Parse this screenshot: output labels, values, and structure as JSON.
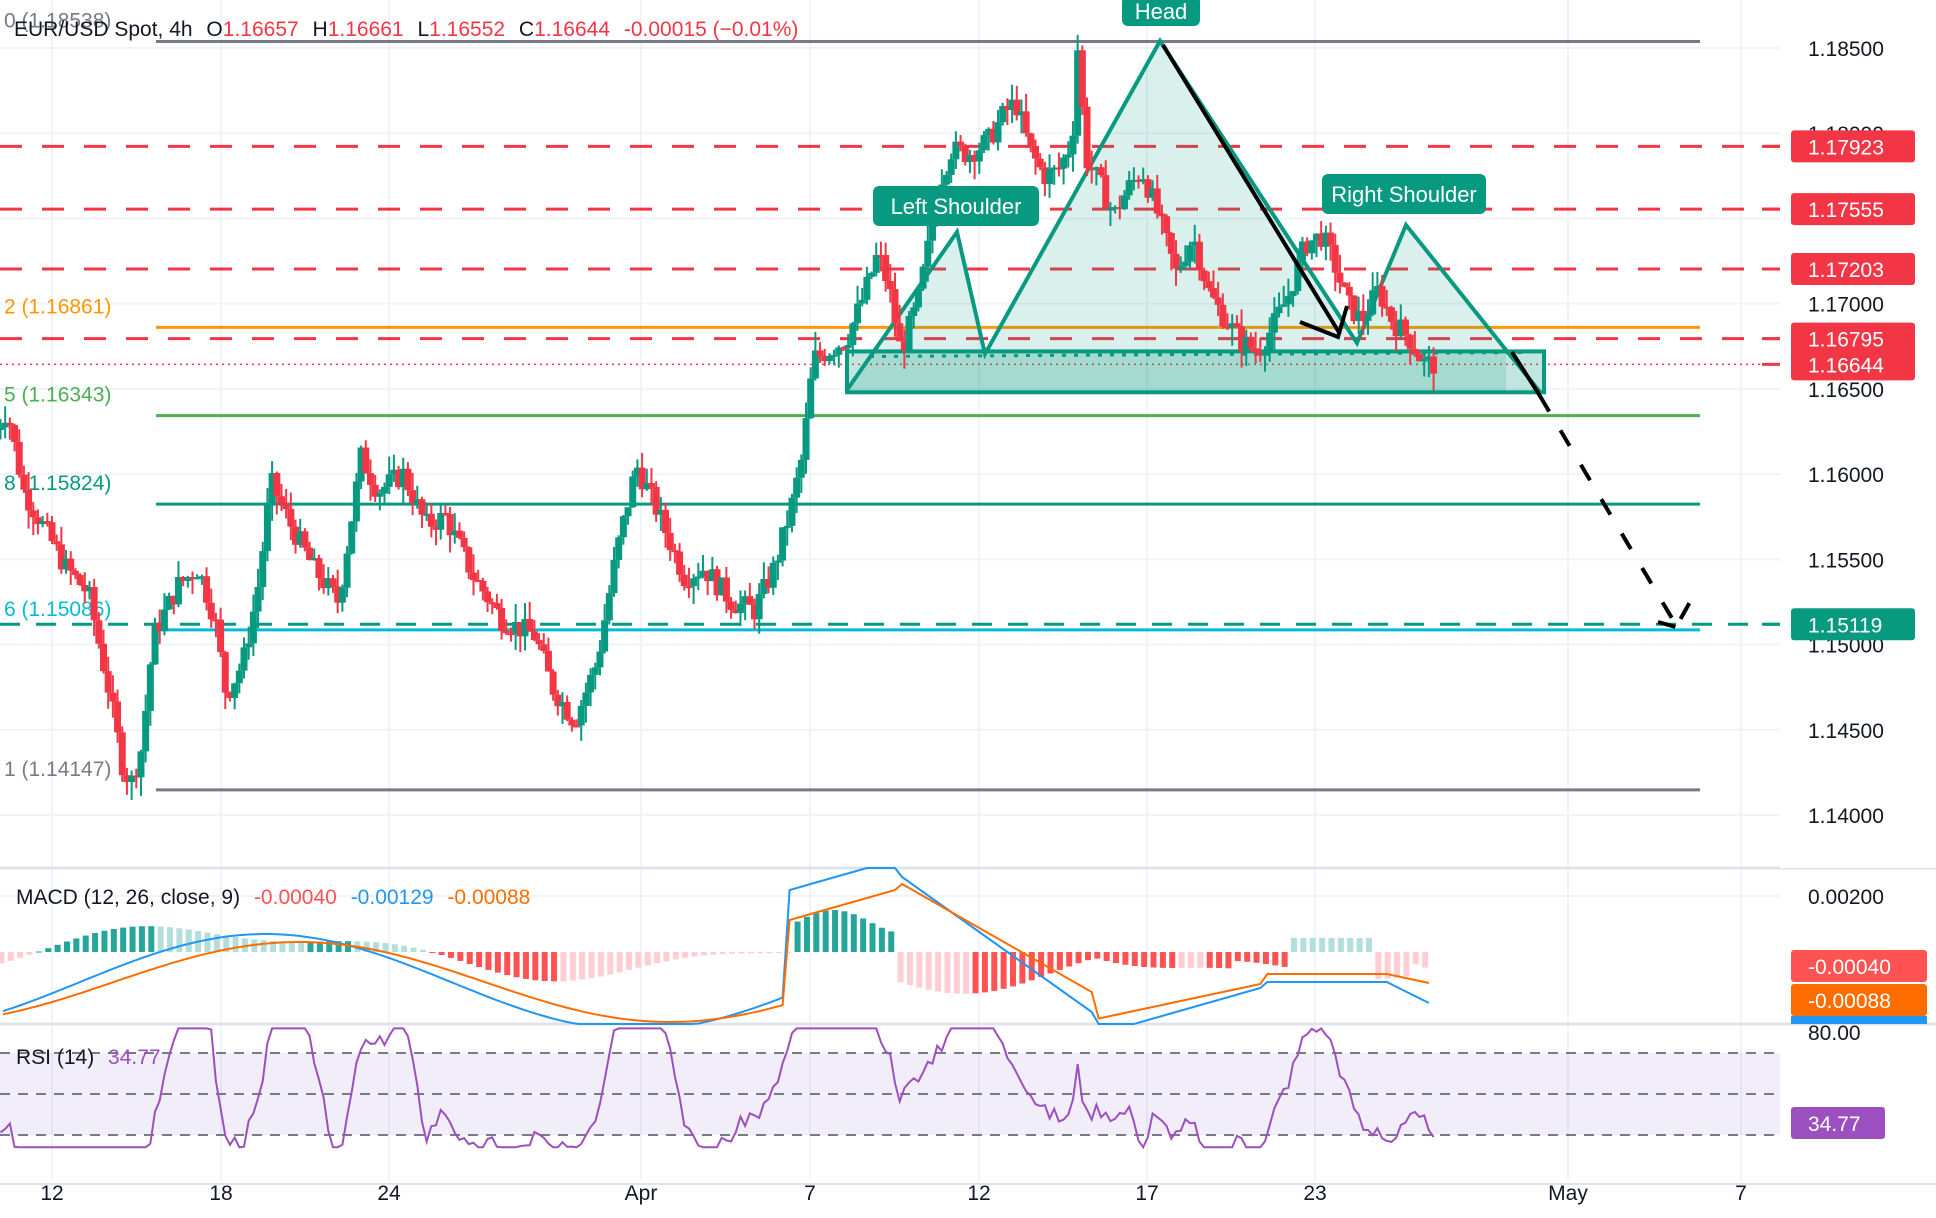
{
  "header": {
    "symbol": "EUR/USD Spot, 4h",
    "open_label": "O",
    "open": "1.16657",
    "high_label": "H",
    "high": "1.16661",
    "low_label": "L",
    "low": "1.16552",
    "close_label": "C",
    "close": "1.16644",
    "change": "-0.00015 (−0.01%)"
  },
  "colors": {
    "up": "#089981",
    "down": "#f23645",
    "pattern": "#089981",
    "pattern_fill": "rgba(8,153,129,0.15)",
    "fib_top": "#787b86",
    "fib_orange": "#ff9800",
    "fib_green": "#4caf50",
    "fib_teal": "#089981",
    "fib_cyan": "#00bcd4",
    "resistance": "#f23645",
    "macd": "#2196f3",
    "signal": "#ff6d00",
    "rsi": "#9c4fbf",
    "rsi_band": "rgba(126,87,194,0.1)"
  },
  "fib_levels": [
    {
      "label": "0 (1.18538)",
      "price": 1.18538,
      "color": "#787b86"
    },
    {
      "label": "2 (1.16861)",
      "price": 1.16861,
      "color": "#ff9800"
    },
    {
      "label": "5 (1.16343)",
      "price": 1.16343,
      "color": "#4caf50"
    },
    {
      "label": "8 (1.15824)",
      "price": 1.15824,
      "color": "#089981"
    },
    {
      "label": "6 (1.15086)",
      "price": 1.15086,
      "color": "#00bcd4"
    },
    {
      "label": "1 (1.14147)",
      "price": 1.14147,
      "color": "#787b86"
    }
  ],
  "price_badges": [
    {
      "value": "1.17923",
      "color": "#f23645"
    },
    {
      "value": "1.17555",
      "color": "#f23645"
    },
    {
      "value": "1.17203",
      "color": "#f23645"
    },
    {
      "value": "1.16795",
      "color": "#f23645"
    },
    {
      "value": "1.16644",
      "color": "#f23645"
    },
    {
      "value": "1.15119",
      "color": "#089981"
    }
  ],
  "pattern_labels": {
    "head": "Head",
    "left_shoulder": "Left Shoulder",
    "right_shoulder": "Right Shoulder"
  },
  "macd": {
    "title": "MACD (12, 26, close, 9)",
    "hist": "-0.00040",
    "macd": "-0.00129",
    "signal": "-0.00088",
    "axis_tick": "0.00200",
    "badges": [
      {
        "value": "-0.00040",
        "color": "#ff5252"
      },
      {
        "value": "-0.00088",
        "color": "#ff6d00"
      }
    ]
  },
  "rsi": {
    "title": "RSI (14)",
    "value": "34.77",
    "axis_tick": "80.00",
    "badge": "34.77"
  },
  "chart_data": {
    "type": "candlestick",
    "title": "EUR/USD Spot, 4h",
    "xlabel": "",
    "ylabel": "Price",
    "x_ticks": [
      "12",
      "18",
      "24",
      "Apr",
      "7",
      "12",
      "17",
      "23",
      "May",
      "7"
    ],
    "y_ticks": [
      "1.18500",
      "1.18000",
      "1.17500",
      "1.17000",
      "1.16500",
      "1.16000",
      "1.15500",
      "1.15000",
      "1.14500",
      "1.14000"
    ],
    "ylim": [
      1.1375,
      1.1875
    ],
    "ohlc_last": {
      "open": 1.16657,
      "high": 1.16661,
      "low": 1.16552,
      "close": 1.16644
    },
    "key_points": [
      {
        "date": "Mar 10",
        "price": 1.163
      },
      {
        "date": "Mar 14",
        "price": 1.1415
      },
      {
        "date": "Mar 19",
        "price": 1.155
      },
      {
        "date": "Mar 20",
        "price": 1.1465
      },
      {
        "date": "Mar 23",
        "price": 1.161
      },
      {
        "date": "Mar 31",
        "price": 1.145
      },
      {
        "date": "Apr 2",
        "price": 1.162
      },
      {
        "date": "Apr 6",
        "price": 1.152
      },
      {
        "date": "Apr 8",
        "price": 1.1665
      },
      {
        "date": "Apr 11",
        "price": 1.1735
      },
      {
        "date": "Apr 12",
        "price": 1.1668
      },
      {
        "date": "Apr 17",
        "price": 1.1854
      },
      {
        "date": "Apr 24",
        "price": 1.1668
      },
      {
        "date": "Apr 26",
        "price": 1.1748
      },
      {
        "date": "Apr 30",
        "price": 1.1664
      }
    ],
    "fib_retracement": [
      {
        "level": "0",
        "price": 1.18538
      },
      {
        "level": "0.382",
        "price": 1.16861
      },
      {
        "level": "0.5",
        "price": 1.16343
      },
      {
        "level": "0.618",
        "price": 1.15824
      },
      {
        "level": "0.786",
        "price": 1.15086
      },
      {
        "level": "1",
        "price": 1.14147
      }
    ],
    "horizontal_levels": [
      1.17923,
      1.17555,
      1.17203,
      1.16795,
      1.15119
    ],
    "pattern": "Head and Shoulders",
    "neckline": 1.1672,
    "projection_target": 1.15119,
    "annotations": [
      "Head",
      "Left Shoulder",
      "Right Shoulder"
    ],
    "indicators": {
      "macd": {
        "params": "12, 26, close, 9",
        "histogram": -0.0004,
        "macd": -0.00129,
        "signal": -0.00088
      },
      "rsi": {
        "period": 14,
        "value": 34.77,
        "upper": 70,
        "middle": 50,
        "lower": 30
      }
    }
  }
}
